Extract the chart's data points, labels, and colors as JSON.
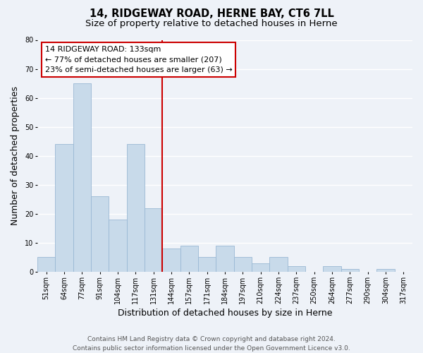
{
  "title": "14, RIDGEWAY ROAD, HERNE BAY, CT6 7LL",
  "subtitle": "Size of property relative to detached houses in Herne",
  "xlabel": "Distribution of detached houses by size in Herne",
  "ylabel": "Number of detached properties",
  "bar_labels": [
    "51sqm",
    "64sqm",
    "77sqm",
    "91sqm",
    "104sqm",
    "117sqm",
    "131sqm",
    "144sqm",
    "157sqm",
    "171sqm",
    "184sqm",
    "197sqm",
    "210sqm",
    "224sqm",
    "237sqm",
    "250sqm",
    "264sqm",
    "277sqm",
    "290sqm",
    "304sqm",
    "317sqm"
  ],
  "bar_values": [
    5,
    44,
    65,
    26,
    18,
    44,
    22,
    8,
    9,
    5,
    9,
    5,
    3,
    5,
    2,
    0,
    2,
    1,
    0,
    1,
    0
  ],
  "bar_color": "#c8daea",
  "bar_edge_color": "#9ab8d4",
  "vline_x_index": 6,
  "vline_color": "#cc0000",
  "annotation_lines": [
    "14 RIDGEWAY ROAD: 133sqm",
    "← 77% of detached houses are smaller (207)",
    "23% of semi-detached houses are larger (63) →"
  ],
  "ylim": [
    0,
    80
  ],
  "yticks": [
    0,
    10,
    20,
    30,
    40,
    50,
    60,
    70,
    80
  ],
  "background_color": "#eef2f8",
  "grid_color": "#ffffff",
  "footer_lines": [
    "Contains HM Land Registry data © Crown copyright and database right 2024.",
    "Contains public sector information licensed under the Open Government Licence v3.0."
  ],
  "annotation_box_edge_color": "#cc0000",
  "title_fontsize": 10.5,
  "subtitle_fontsize": 9.5,
  "axis_label_fontsize": 9,
  "tick_fontsize": 7,
  "annotation_fontsize": 8,
  "footer_fontsize": 6.5
}
